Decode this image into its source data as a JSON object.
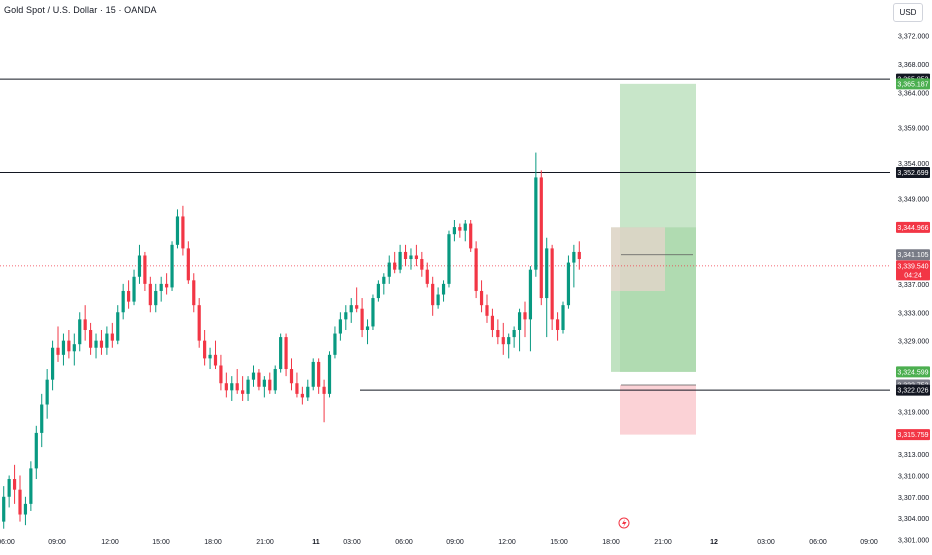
{
  "header": {
    "symbol_title": "Gold Spot / U.S. Dollar · 15 · OANDA",
    "currency": "USD"
  },
  "colors": {
    "up": "#089981",
    "down": "#f23645",
    "hline": "#131722",
    "target_zone": "#c8e6c9",
    "target_zone_dark": "#a5d6a7",
    "stop_zone": "#fbd2d6",
    "price_line": "#f23645"
  },
  "chart_data": {
    "type": "candlestick",
    "title": "Gold Spot / U.S. Dollar · 15 · OANDA",
    "y_ticks": [
      "3,301.000",
      "3,304.000",
      "3,307.000",
      "3,310.000",
      "3,313.000",
      "3,319.000",
      "3,329.000",
      "3,333.000",
      "3,337.000",
      "3,349.000",
      "3,354.000",
      "3,359.000",
      "3,364.000",
      "3,368.000",
      "3,372.000"
    ],
    "x_ticks": [
      "06:00",
      "09:00",
      "12:00",
      "15:00",
      "18:00",
      "21:00",
      "11",
      "03:00",
      "06:00",
      "09:00",
      "12:00",
      "15:00",
      "18:00",
      "21:00",
      "12",
      "03:00",
      "06:00",
      "09:00"
    ],
    "ylim": [
      3299.5,
      3377
    ],
    "candles": [
      [
        3303.5,
        3308.5,
        3302.5,
        3307.0
      ],
      [
        3307.0,
        3310.0,
        3305.5,
        3309.5
      ],
      [
        3309.5,
        3311.5,
        3306.0,
        3308.0
      ],
      [
        3308.0,
        3310.0,
        3303.5,
        3304.5
      ],
      [
        3304.5,
        3307.0,
        3303.0,
        3306.0
      ],
      [
        3306.0,
        3312.0,
        3305.0,
        3311.0
      ],
      [
        3311.0,
        3317.0,
        3309.5,
        3316.0
      ],
      [
        3316.0,
        3321.5,
        3314.0,
        3320.0
      ],
      [
        3320.0,
        3325.0,
        3318.0,
        3323.5
      ],
      [
        3323.5,
        3329.0,
        3322.0,
        3328.0
      ],
      [
        3328.0,
        3331.0,
        3326.0,
        3327.0
      ],
      [
        3327.0,
        3330.0,
        3325.5,
        3329.0
      ],
      [
        3329.0,
        3330.5,
        3326.5,
        3327.5
      ],
      [
        3327.5,
        3330.0,
        3325.5,
        3328.5
      ],
      [
        3328.5,
        3333.0,
        3327.5,
        3332.0
      ],
      [
        3332.0,
        3334.0,
        3329.0,
        3330.5
      ],
      [
        3330.5,
        3331.5,
        3327.0,
        3328.0
      ],
      [
        3328.0,
        3330.0,
        3326.5,
        3329.0
      ],
      [
        3329.0,
        3330.5,
        3327.0,
        3328.0
      ],
      [
        3328.0,
        3331.0,
        3327.0,
        3330.0
      ],
      [
        3330.0,
        3331.5,
        3328.0,
        3329.0
      ],
      [
        3329.0,
        3334.0,
        3328.5,
        3333.0
      ],
      [
        3333.0,
        3337.0,
        3332.0,
        3336.0
      ],
      [
        3336.0,
        3337.5,
        3333.5,
        3334.5
      ],
      [
        3334.5,
        3339.0,
        3334.0,
        3338.0
      ],
      [
        3338.0,
        3342.5,
        3337.0,
        3341.0
      ],
      [
        3341.0,
        3341.5,
        3336.0,
        3337.0
      ],
      [
        3337.0,
        3338.0,
        3333.0,
        3334.0
      ],
      [
        3334.0,
        3337.0,
        3333.0,
        3336.0
      ],
      [
        3336.0,
        3338.0,
        3334.5,
        3337.0
      ],
      [
        3337.0,
        3338.5,
        3335.5,
        3336.5
      ],
      [
        3336.5,
        3343.0,
        3336.0,
        3342.5
      ],
      [
        3342.5,
        3347.5,
        3342.0,
        3346.5
      ],
      [
        3346.5,
        3348.0,
        3341.0,
        3342.0
      ],
      [
        3342.0,
        3343.0,
        3337.0,
        3337.5
      ],
      [
        3337.5,
        3338.5,
        3333.0,
        3334.0
      ],
      [
        3334.0,
        3335.0,
        3328.0,
        3329.0
      ],
      [
        3329.0,
        3330.5,
        3325.5,
        3326.5
      ],
      [
        3326.5,
        3328.0,
        3325.0,
        3327.0
      ],
      [
        3327.0,
        3329.0,
        3325.0,
        3325.5
      ],
      [
        3325.5,
        3327.0,
        3322.0,
        3323.0
      ],
      [
        3323.0,
        3324.5,
        3321.0,
        3322.0
      ],
      [
        3322.0,
        3324.0,
        3320.5,
        3323.0
      ],
      [
        3323.0,
        3325.0,
        3321.5,
        3322.0
      ],
      [
        3322.0,
        3324.0,
        3320.5,
        3321.5
      ],
      [
        3321.5,
        3324.0,
        3320.5,
        3323.5
      ],
      [
        3323.5,
        3325.5,
        3322.5,
        3324.5
      ],
      [
        3324.5,
        3325.0,
        3322.0,
        3322.5
      ],
      [
        3322.5,
        3324.0,
        3321.0,
        3323.5
      ],
      [
        3323.5,
        3324.5,
        3321.5,
        3322.0
      ],
      [
        3322.0,
        3325.5,
        3321.5,
        3325.0
      ],
      [
        3325.0,
        3330.0,
        3324.5,
        3329.5
      ],
      [
        3329.5,
        3330.0,
        3324.0,
        3325.0
      ],
      [
        3325.0,
        3326.5,
        3322.0,
        3323.0
      ],
      [
        3323.0,
        3324.5,
        3321.0,
        3321.5
      ],
      [
        3321.5,
        3322.5,
        3320.0,
        3321.0
      ],
      [
        3321.0,
        3323.5,
        3320.5,
        3322.5
      ],
      [
        3322.5,
        3326.5,
        3322.0,
        3326.0
      ],
      [
        3326.0,
        3326.5,
        3321.5,
        3322.5
      ],
      [
        3322.5,
        3323.5,
        3317.5,
        3321.5
      ],
      [
        3321.5,
        3327.5,
        3321.0,
        3327.0
      ],
      [
        3327.0,
        3331.0,
        3326.5,
        3330.0
      ],
      [
        3330.0,
        3333.0,
        3329.0,
        3332.0
      ],
      [
        3332.0,
        3334.0,
        3330.5,
        3333.0
      ],
      [
        3333.0,
        3335.0,
        3331.5,
        3334.0
      ],
      [
        3334.0,
        3336.5,
        3333.0,
        3333.5
      ],
      [
        3333.5,
        3335.0,
        3329.5,
        3330.5
      ],
      [
        3330.5,
        3332.0,
        3328.5,
        3331.0
      ],
      [
        3331.0,
        3335.5,
        3330.5,
        3335.0
      ],
      [
        3335.0,
        3337.5,
        3334.5,
        3337.0
      ],
      [
        3337.0,
        3338.5,
        3335.5,
        3338.0
      ],
      [
        3338.0,
        3341.0,
        3337.0,
        3340.0
      ],
      [
        3340.0,
        3341.5,
        3338.5,
        3339.0
      ],
      [
        3339.0,
        3342.5,
        3338.5,
        3341.5
      ],
      [
        3341.5,
        3342.5,
        3339.5,
        3340.5
      ],
      [
        3340.5,
        3342.0,
        3339.0,
        3341.0
      ],
      [
        3341.0,
        3342.5,
        3339.5,
        3340.5
      ],
      [
        3340.5,
        3341.5,
        3338.0,
        3339.0
      ],
      [
        3339.0,
        3340.0,
        3336.5,
        3337.0
      ],
      [
        3337.0,
        3338.0,
        3332.5,
        3334.0
      ],
      [
        3334.0,
        3336.5,
        3333.5,
        3335.5
      ],
      [
        3335.5,
        3337.5,
        3334.5,
        3337.0
      ],
      [
        3337.0,
        3344.5,
        3336.5,
        3344.0
      ],
      [
        3344.0,
        3346.0,
        3343.0,
        3345.0
      ],
      [
        3345.0,
        3345.5,
        3343.5,
        3344.5
      ],
      [
        3344.5,
        3346.0,
        3343.0,
        3345.5
      ],
      [
        3345.5,
        3346.0,
        3341.5,
        3342.0
      ],
      [
        3342.0,
        3343.0,
        3335.0,
        3336.0
      ],
      [
        3336.0,
        3337.5,
        3333.0,
        3334.0
      ],
      [
        3334.0,
        3335.5,
        3331.5,
        3332.5
      ],
      [
        3332.5,
        3333.5,
        3329.5,
        3330.5
      ],
      [
        3330.5,
        3332.0,
        3328.5,
        3329.5
      ],
      [
        3329.5,
        3331.5,
        3327.0,
        3328.5
      ],
      [
        3328.5,
        3330.0,
        3326.5,
        3329.5
      ],
      [
        3329.5,
        3331.0,
        3328.0,
        3330.5
      ],
      [
        3330.5,
        3333.5,
        3327.5,
        3333.0
      ],
      [
        3333.0,
        3334.5,
        3329.5,
        3332.0
      ],
      [
        3332.0,
        3339.5,
        3327.5,
        3339.0
      ],
      [
        3339.0,
        3355.5,
        3338.0,
        3352.0
      ],
      [
        3352.0,
        3353.0,
        3334.0,
        3335.0
      ],
      [
        3335.0,
        3343.5,
        3329.5,
        3342.0
      ],
      [
        3342.0,
        3342.5,
        3330.5,
        3332.0
      ],
      [
        3332.0,
        3333.0,
        3329.0,
        3330.5
      ],
      [
        3330.5,
        3334.5,
        3330.0,
        3334.0
      ],
      [
        3334.0,
        3341.0,
        3333.5,
        3340.0
      ],
      [
        3340.0,
        3342.5,
        3336.5,
        3341.5
      ],
      [
        3341.5,
        3343.0,
        3339.0,
        3340.5
      ]
    ],
    "horizontal_lines": [
      {
        "price": 3365.853,
        "label": "3,365.853"
      },
      {
        "price": 3352.699,
        "label": "3,352.699"
      },
      {
        "price": 3322.026,
        "label": "3,322.026",
        "partial": true
      }
    ],
    "position_tool": {
      "target_price": 3365.187,
      "entry_upper": 3344.966,
      "entry_lower": 3324.599,
      "stop_price": 3315.759
    },
    "current_price": "3,339.540",
    "countdown": "04:24",
    "price_labels": [
      {
        "text": "3,365.853",
        "price": 3365.853,
        "color": "#131722"
      },
      {
        "text": "3,365.187",
        "price": 3365.187,
        "color": "#4caf50"
      },
      {
        "text": "3,352.699",
        "price": 3352.699,
        "color": "#131722"
      },
      {
        "text": "3,344.966",
        "price": 3344.966,
        "color": "#f23645"
      },
      {
        "text": "3,341.105",
        "price": 3341.105,
        "color": "#787b86"
      },
      {
        "text": "3,324.599",
        "price": 3324.599,
        "color": "#4caf50"
      },
      {
        "text": "3,322.753",
        "price": 3322.753,
        "color": "#787b86"
      },
      {
        "text": "3,322.026",
        "price": 3322.026,
        "color": "#131722"
      },
      {
        "text": "3,315.759",
        "price": 3315.759,
        "color": "#f23645"
      }
    ]
  }
}
